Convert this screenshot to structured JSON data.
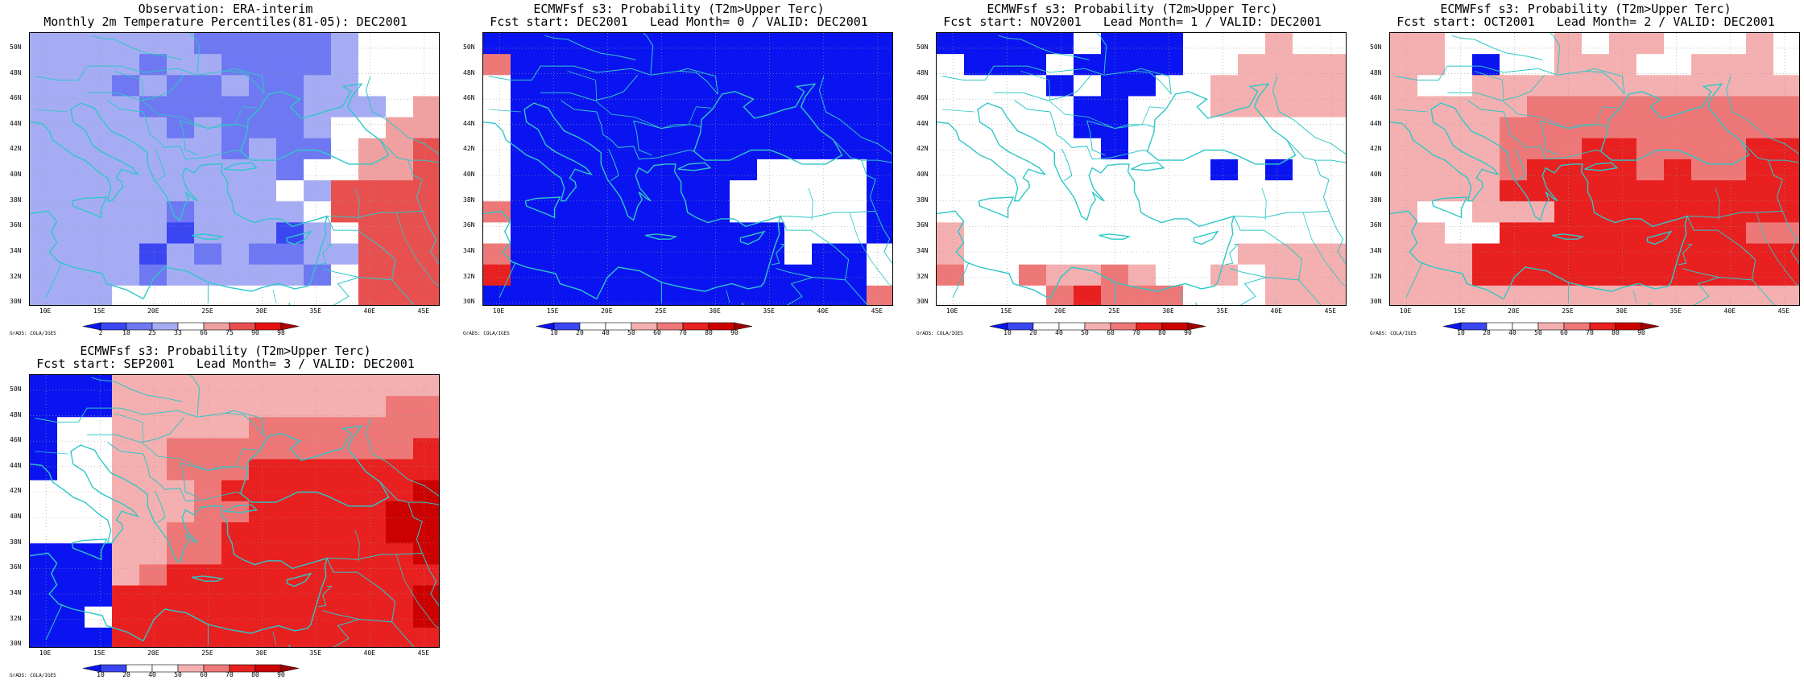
{
  "coast_color": "#2ec7c7",
  "panels": [
    {
      "title_line1": "Observation: ERA-interim",
      "title_line2": "Monthly 2m Temperature Percentiles(81-05): DEC2001",
      "colorbar_labels": [
        "2",
        "10",
        "25",
        "33",
        "66",
        "75",
        "90",
        "98"
      ],
      "colorbar_colors": [
        "#0a14f0",
        "#3a46f2",
        "#6e78f2",
        "#a6acf4",
        "#ffffff",
        "#f0a0a0",
        "#e85050",
        "#e81010",
        "#b00000"
      ],
      "grid_rows": [
        "333333222223444",
        "333323322223444",
        "333232232233444",
        "333322222233345",
        "333332322234455",
        "333333323224556",
        "333333333244556",
        "333333333436666",
        "333332333346666",
        "333331333134666",
        "333313232233666",
        "333323333324666",
        "333444444444666"
      ]
    },
    {
      "title_line1": "ECMWFsf s3: Probability (T2m>Upper Terc)",
      "title_line2": "Fcst start: DEC2001   Lead Month= 0 / VALID: DEC2001",
      "colorbar_labels": [
        "10",
        "20",
        "40",
        "50",
        "60",
        "70",
        "80",
        "90"
      ],
      "colorbar_colors": [
        "#0a14f0",
        "#3a46f2",
        "#ffffff",
        "#ffffff",
        "#f4b0b0",
        "#ee7878",
        "#e82020",
        "#cc0000",
        "#a00000"
      ],
      "grid_rows": [
        "000000000000000",
        "500000000000000",
        "200000000000000",
        "200000000000000",
        "200000000000000",
        "200000000000000",
        "200000000022220",
        "200000000222220",
        "500000000222220",
        "200000000002220",
        "500000000002002",
        "600000000000002",
        "000000000000005"
      ]
    },
    {
      "title_line1": "ECMWFsf s3: Probability (T2m>Upper Terc)",
      "title_line2": "Fcst start: NOV2001   Lead Month= 1 / VALID: DEC2001",
      "colorbar_labels": [
        "10",
        "20",
        "40",
        "50",
        "60",
        "70",
        "80",
        "90"
      ],
      "colorbar_colors": [
        "#0a14f0",
        "#3a46f2",
        "#ffffff",
        "#ffffff",
        "#f4b0b0",
        "#ee7878",
        "#e82020",
        "#cc0000",
        "#a00000"
      ],
      "grid_rows": [
        "000002000222422",
        "200020000224444",
        "222202002244444",
        "222220022244444",
        "222220022222222",
        "222222022222222",
        "222222222202022",
        "222222222222222",
        "222222222222222",
        "422222222222222",
        "422222222224444",
        "522544542242444",
        "222256555222444"
      ]
    },
    {
      "title_line1": "ECMWFsf s3: Probability (T2m>Upper Terc)",
      "title_line2": "Fcst start: OCT2001   Lead Month= 2 / VALID: DEC2001",
      "colorbar_labels": [
        "10",
        "20",
        "40",
        "50",
        "60",
        "70",
        "80",
        "90"
      ],
      "colorbar_colors": [
        "#0a14f0",
        "#3a46f2",
        "#ffffff",
        "#ffffff",
        "#f4b0b0",
        "#ee7878",
        "#e82020",
        "#cc0000",
        "#a00000"
      ],
      "grid_rows": [
        "442222424422242",
        "442022444224442",
        "422444444444444",
        "444445555555555",
        "444455555555555",
        "444455566555566",
        "444456666565566",
        "444466666666666",
        "422444666666666",
        "442266666666655",
        "444666666666666",
        "444666666666666",
        "444444444444444"
      ]
    },
    {
      "title_line1": "ECMWFsf s3: Probability (T2m>Upper Terc)",
      "title_line2": "Fcst start: SEP2001   Lead Month= 3 / VALID: DEC2001",
      "colorbar_labels": [
        "10",
        "20",
        "40",
        "50",
        "60",
        "70",
        "80",
        "90"
      ],
      "colorbar_colors": [
        "#0a14f0",
        "#3a46f2",
        "#ffffff",
        "#ffffff",
        "#f4b0b0",
        "#ee7878",
        "#e82020",
        "#cc0000",
        "#a00000"
      ],
      "grid_rows": [
        "000444444444444",
        "000444444444455",
        "022444445555555",
        "022445555555556",
        "022445556666666",
        "222444566666667",
        "222444556666677",
        "222445566666677",
        "000445566666667",
        "000456666666666",
        "000666666666667",
        "002666666666667",
        "000666666666666"
      ]
    }
  ],
  "lat_labels": [
    "50N",
    "48N",
    "46N",
    "44N",
    "42N",
    "40N",
    "38N",
    "36N",
    "34N",
    "32N",
    "30N"
  ],
  "lon_labels": [
    "10E",
    "15E",
    "20E",
    "25E",
    "30E",
    "35E",
    "40E",
    "45E"
  ],
  "credit": "GrADS: COLA/IGES"
}
